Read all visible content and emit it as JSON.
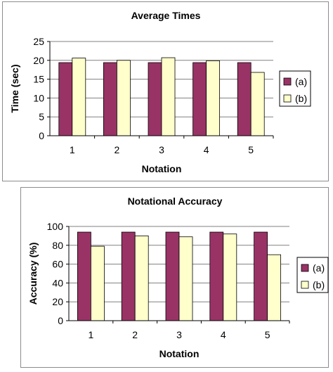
{
  "chart_data": [
    {
      "type": "bar",
      "title": "Average Times",
      "xlabel": "Notation",
      "ylabel": "Time (sec)",
      "categories": [
        "1",
        "2",
        "3",
        "4",
        "5"
      ],
      "series": [
        {
          "name": "(a)",
          "values": [
            19.4,
            19.4,
            19.4,
            19.4,
            19.4
          ]
        },
        {
          "name": "(b)",
          "values": [
            20.6,
            20.0,
            20.7,
            19.9,
            16.8
          ]
        }
      ],
      "ylim": [
        0,
        25
      ],
      "yticks": [
        0,
        5,
        10,
        15,
        20,
        25
      ],
      "grid": true,
      "legend": "right",
      "colors": {
        "a": "#993366",
        "b": "#ffffcc",
        "grid": "#808080",
        "plot_bg": "#ffffff"
      }
    },
    {
      "type": "bar",
      "title": "Notational Accuracy",
      "xlabel": "Notation",
      "ylabel": "Accuracy (%)",
      "categories": [
        "1",
        "2",
        "3",
        "4",
        "5"
      ],
      "series": [
        {
          "name": "(a)",
          "values": [
            94,
            94,
            94,
            94,
            94
          ]
        },
        {
          "name": "(b)",
          "values": [
            79,
            90,
            89,
            92,
            70
          ]
        }
      ],
      "ylim": [
        0,
        100
      ],
      "yticks": [
        0,
        20,
        40,
        60,
        80,
        100
      ],
      "grid": true,
      "legend": "right",
      "colors": {
        "a": "#993366",
        "b": "#ffffcc",
        "grid": "#808080",
        "plot_bg": "#ffffff"
      }
    }
  ]
}
